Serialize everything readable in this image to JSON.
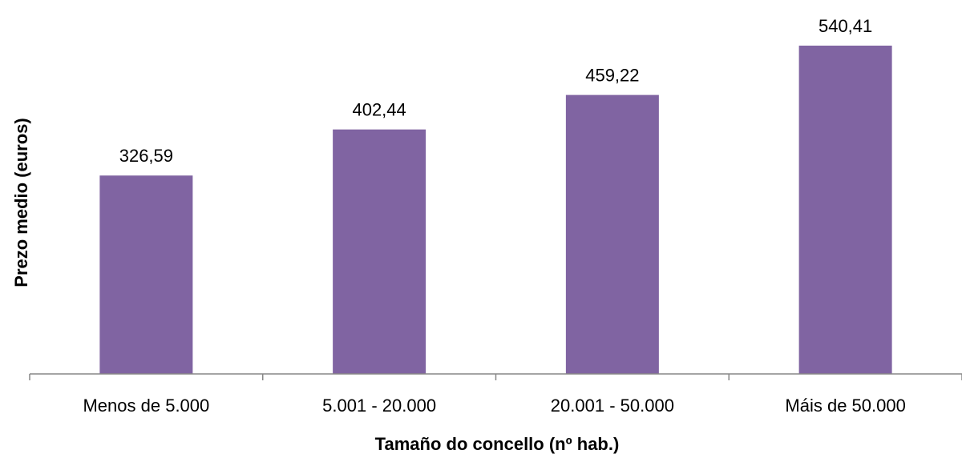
{
  "chart_data": {
    "type": "bar",
    "categories": [
      "Menos de 5.000",
      "5.001 - 20.000",
      "20.001 - 50.000",
      "Máis de 50.000"
    ],
    "values": [
      326.59,
      402.44,
      459.22,
      540.41
    ],
    "value_labels": [
      "326,59",
      "402,44",
      "459,22",
      "540,41"
    ],
    "title": "",
    "xlabel": "Tamaño do concello (nº hab.)",
    "ylabel": "Prezo medio (euros)",
    "ylim": [
      0,
      540.41
    ],
    "grid": false,
    "legend": "none",
    "bar_color": "#8064A2"
  }
}
